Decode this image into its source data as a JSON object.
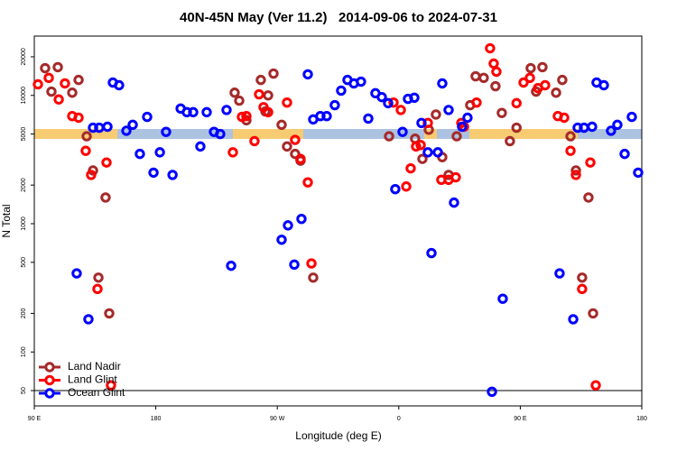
{
  "chart_data": {
    "type": "scatter",
    "title": "40N-45N May (Ver 11.2)   2014-09-06 to 2024-07-31",
    "xlabel": "Longitude (deg E)",
    "ylabel": "N Total",
    "xlim": [
      90,
      540
    ],
    "xticks": [
      {
        "value": 90,
        "label": "90 E"
      },
      {
        "value": 180,
        "label": "180"
      },
      {
        "value": 270,
        "label": "90 W"
      },
      {
        "value": 360,
        "label": "0"
      },
      {
        "value": 450,
        "label": "90 E"
      },
      {
        "value": 540,
        "label": "180"
      }
    ],
    "ylim": [
      38,
      29000
    ],
    "log_y": true,
    "yticks": [
      50,
      100,
      200,
      500,
      1000,
      2000,
      5000,
      10000,
      20000
    ],
    "reference_line": 50,
    "legend": "lower left",
    "series": [
      {
        "name": "Land Nadir",
        "color": "#a52a2a",
        "x": [
          98.0,
          107.4,
          102.7,
          118.1,
          122.8,
          128.8,
          133.5,
          142.8,
          145.5,
          137.5,
          238.4,
          241.8,
          247.1,
          257.8,
          263.2,
          267.2,
          261.2,
          273.2,
          277.2,
          283.2,
          287.2,
          296.6,
          352.8,
          372.1,
          377.5,
          382.2,
          387.5,
          392.2,
          396.9,
          402.9,
          412.9,
          416.9,
          422.9,
          431.6,
          436.3,
          442.3,
          447.2,
          457.7,
          466.4,
          461.7,
          476.5,
          481.1,
          487.2,
          491.2,
          500.5,
          503.9,
          495.8
        ],
        "values": [
          16300,
          16600,
          10700,
          10500,
          13200,
          4800,
          2600,
          1600,
          200,
          380,
          10500,
          9100,
          6400,
          13200,
          10000,
          14800,
          7500,
          5900,
          4000,
          3500,
          3100,
          380,
          4800,
          4600,
          3200,
          5400,
          7100,
          3300,
          2400,
          4800,
          8400,
          14100,
          13700,
          11800,
          7300,
          4400,
          5600,
          16300,
          16600,
          10700,
          10500,
          13200,
          4800,
          2600,
          1600,
          200,
          380
        ]
      },
      {
        "name": "Land Glint",
        "color": "#ff0000",
        "x": [
          92.7,
          100.7,
          108.1,
          112.7,
          118.1,
          122.8,
          128.1,
          132.1,
          143.5,
          136.8,
          146.8,
          237.1,
          243.8,
          247.1,
          253.1,
          256.5,
          259.8,
          263.2,
          277.2,
          283.2,
          287.2,
          292.6,
          295.3,
          356.1,
          361.5,
          365.5,
          368.8,
          372.8,
          376.2,
          381.5,
          391.5,
          396.9,
          402.2,
          406.3,
          408.3,
          417.6,
          427.6,
          430.3,
          432.3,
          447.2,
          452.4,
          457.1,
          463.1,
          468.4,
          477.8,
          482.5,
          487.2,
          491.2,
          501.9,
          495.8,
          505.9
        ],
        "values": [
          12200,
          13700,
          9300,
          12400,
          6900,
          6700,
          3700,
          2400,
          3000,
          310,
          55,
          3600,
          6800,
          6900,
          4400,
          10200,
          8100,
          7400,
          8800,
          4500,
          3200,
          2100,
          490,
          8800,
          7700,
          1950,
          2700,
          4000,
          4100,
          6100,
          2200,
          2200,
          2300,
          6100,
          5700,
          8800,
          23300,
          17700,
          15300,
          8700,
          12600,
          13700,
          11400,
          12000,
          6900,
          6700,
          3700,
          2400,
          3000,
          310,
          55
        ]
      },
      {
        "name": "Ocean Glint",
        "color": "#0000ff",
        "x": [
          121.4,
          130.1,
          133.5,
          138.1,
          144.2,
          148.2,
          152.8,
          158.2,
          162.9,
          168.2,
          173.6,
          178.3,
          183.0,
          187.6,
          192.4,
          198.4,
          203.0,
          207.7,
          213.0,
          217.7,
          223.1,
          227.7,
          232.4,
          235.8,
          273.2,
          277.9,
          282.6,
          287.9,
          292.6,
          296.6,
          301.9,
          306.6,
          312.6,
          317.3,
          322.0,
          326.7,
          332.0,
          337.4,
          342.7,
          347.4,
          352.1,
          357.4,
          362.8,
          366.8,
          371.5,
          376.8,
          381.5,
          384.2,
          388.9,
          392.2,
          396.9,
          400.9,
          406.9,
          410.9,
          429.0,
          437.0,
          479.1,
          489.2,
          492.5,
          497.2,
          503.2,
          506.5,
          511.9,
          517.2,
          521.9,
          527.3,
          532.6,
          537.3
        ],
        "values": [
          410,
          180,
          5600,
          5600,
          5700,
          12600,
          12000,
          5300,
          5900,
          3500,
          6800,
          2500,
          3600,
          5200,
          2400,
          7900,
          7400,
          7400,
          4000,
          7400,
          5200,
          5000,
          7700,
          470,
          750,
          970,
          480,
          1090,
          14600,
          6500,
          6900,
          6900,
          8400,
          10900,
          13200,
          12400,
          12800,
          6600,
          10400,
          9700,
          8700,
          1860,
          5200,
          9400,
          9600,
          6100,
          3600,
          590,
          3600,
          12400,
          7700,
          1460,
          5700,
          6700,
          49,
          260,
          410,
          180,
          5600,
          5600,
          5700,
          12600,
          12000,
          5300,
          5900,
          3500,
          6800,
          2500
        ]
      }
    ]
  }
}
